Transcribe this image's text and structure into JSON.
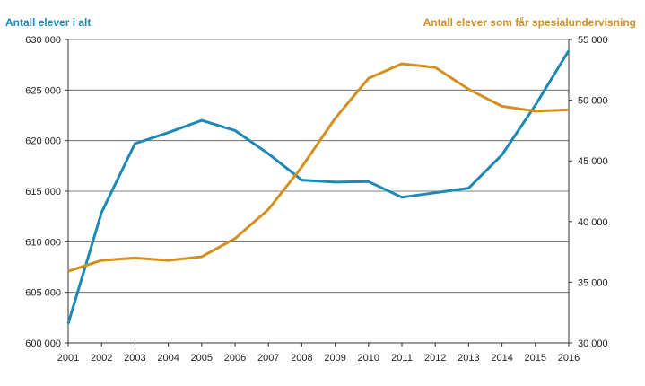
{
  "chart_data": {
    "type": "line",
    "x": [
      "2001",
      "2002",
      "2003",
      "2004",
      "2005",
      "2006",
      "2007",
      "2008",
      "2009",
      "2010",
      "2011",
      "2012",
      "2013",
      "2014",
      "2015",
      "2016"
    ],
    "series": [
      {
        "name": "Antall elever i alt",
        "axis": "left",
        "color": "#1c8ab5",
        "values": [
          601900,
          612900,
          619700,
          620800,
          622000,
          621000,
          618700,
          616100,
          615900,
          615950,
          614400,
          614850,
          615300,
          618600,
          623500,
          628900
        ]
      },
      {
        "name": "Antall elever som får spesialundervisning",
        "axis": "right",
        "color": "#d4901f",
        "values": [
          35900,
          36800,
          37000,
          36800,
          37100,
          38600,
          41000,
          44500,
          48500,
          51800,
          53000,
          52700,
          50900,
          49500,
          49100,
          49200
        ]
      }
    ],
    "y_left": {
      "title": "Antall elever i alt",
      "ylim": [
        600000,
        630000
      ],
      "ticks": [
        600000,
        605000,
        610000,
        615000,
        620000,
        625000,
        630000
      ],
      "tick_labels": [
        "600 000",
        "605 000",
        "610 000",
        "615 000",
        "620 000",
        "625 000",
        "630 000"
      ]
    },
    "y_right": {
      "title": "Antall elever som får spesialundervisning",
      "ylim": [
        30000,
        55000
      ],
      "ticks": [
        30000,
        35000,
        40000,
        45000,
        50000,
        55000
      ],
      "tick_labels": [
        "30 000",
        "35 000",
        "40 000",
        "45 000",
        "50 000",
        "55 000"
      ]
    },
    "grid": true,
    "legend": "none"
  }
}
